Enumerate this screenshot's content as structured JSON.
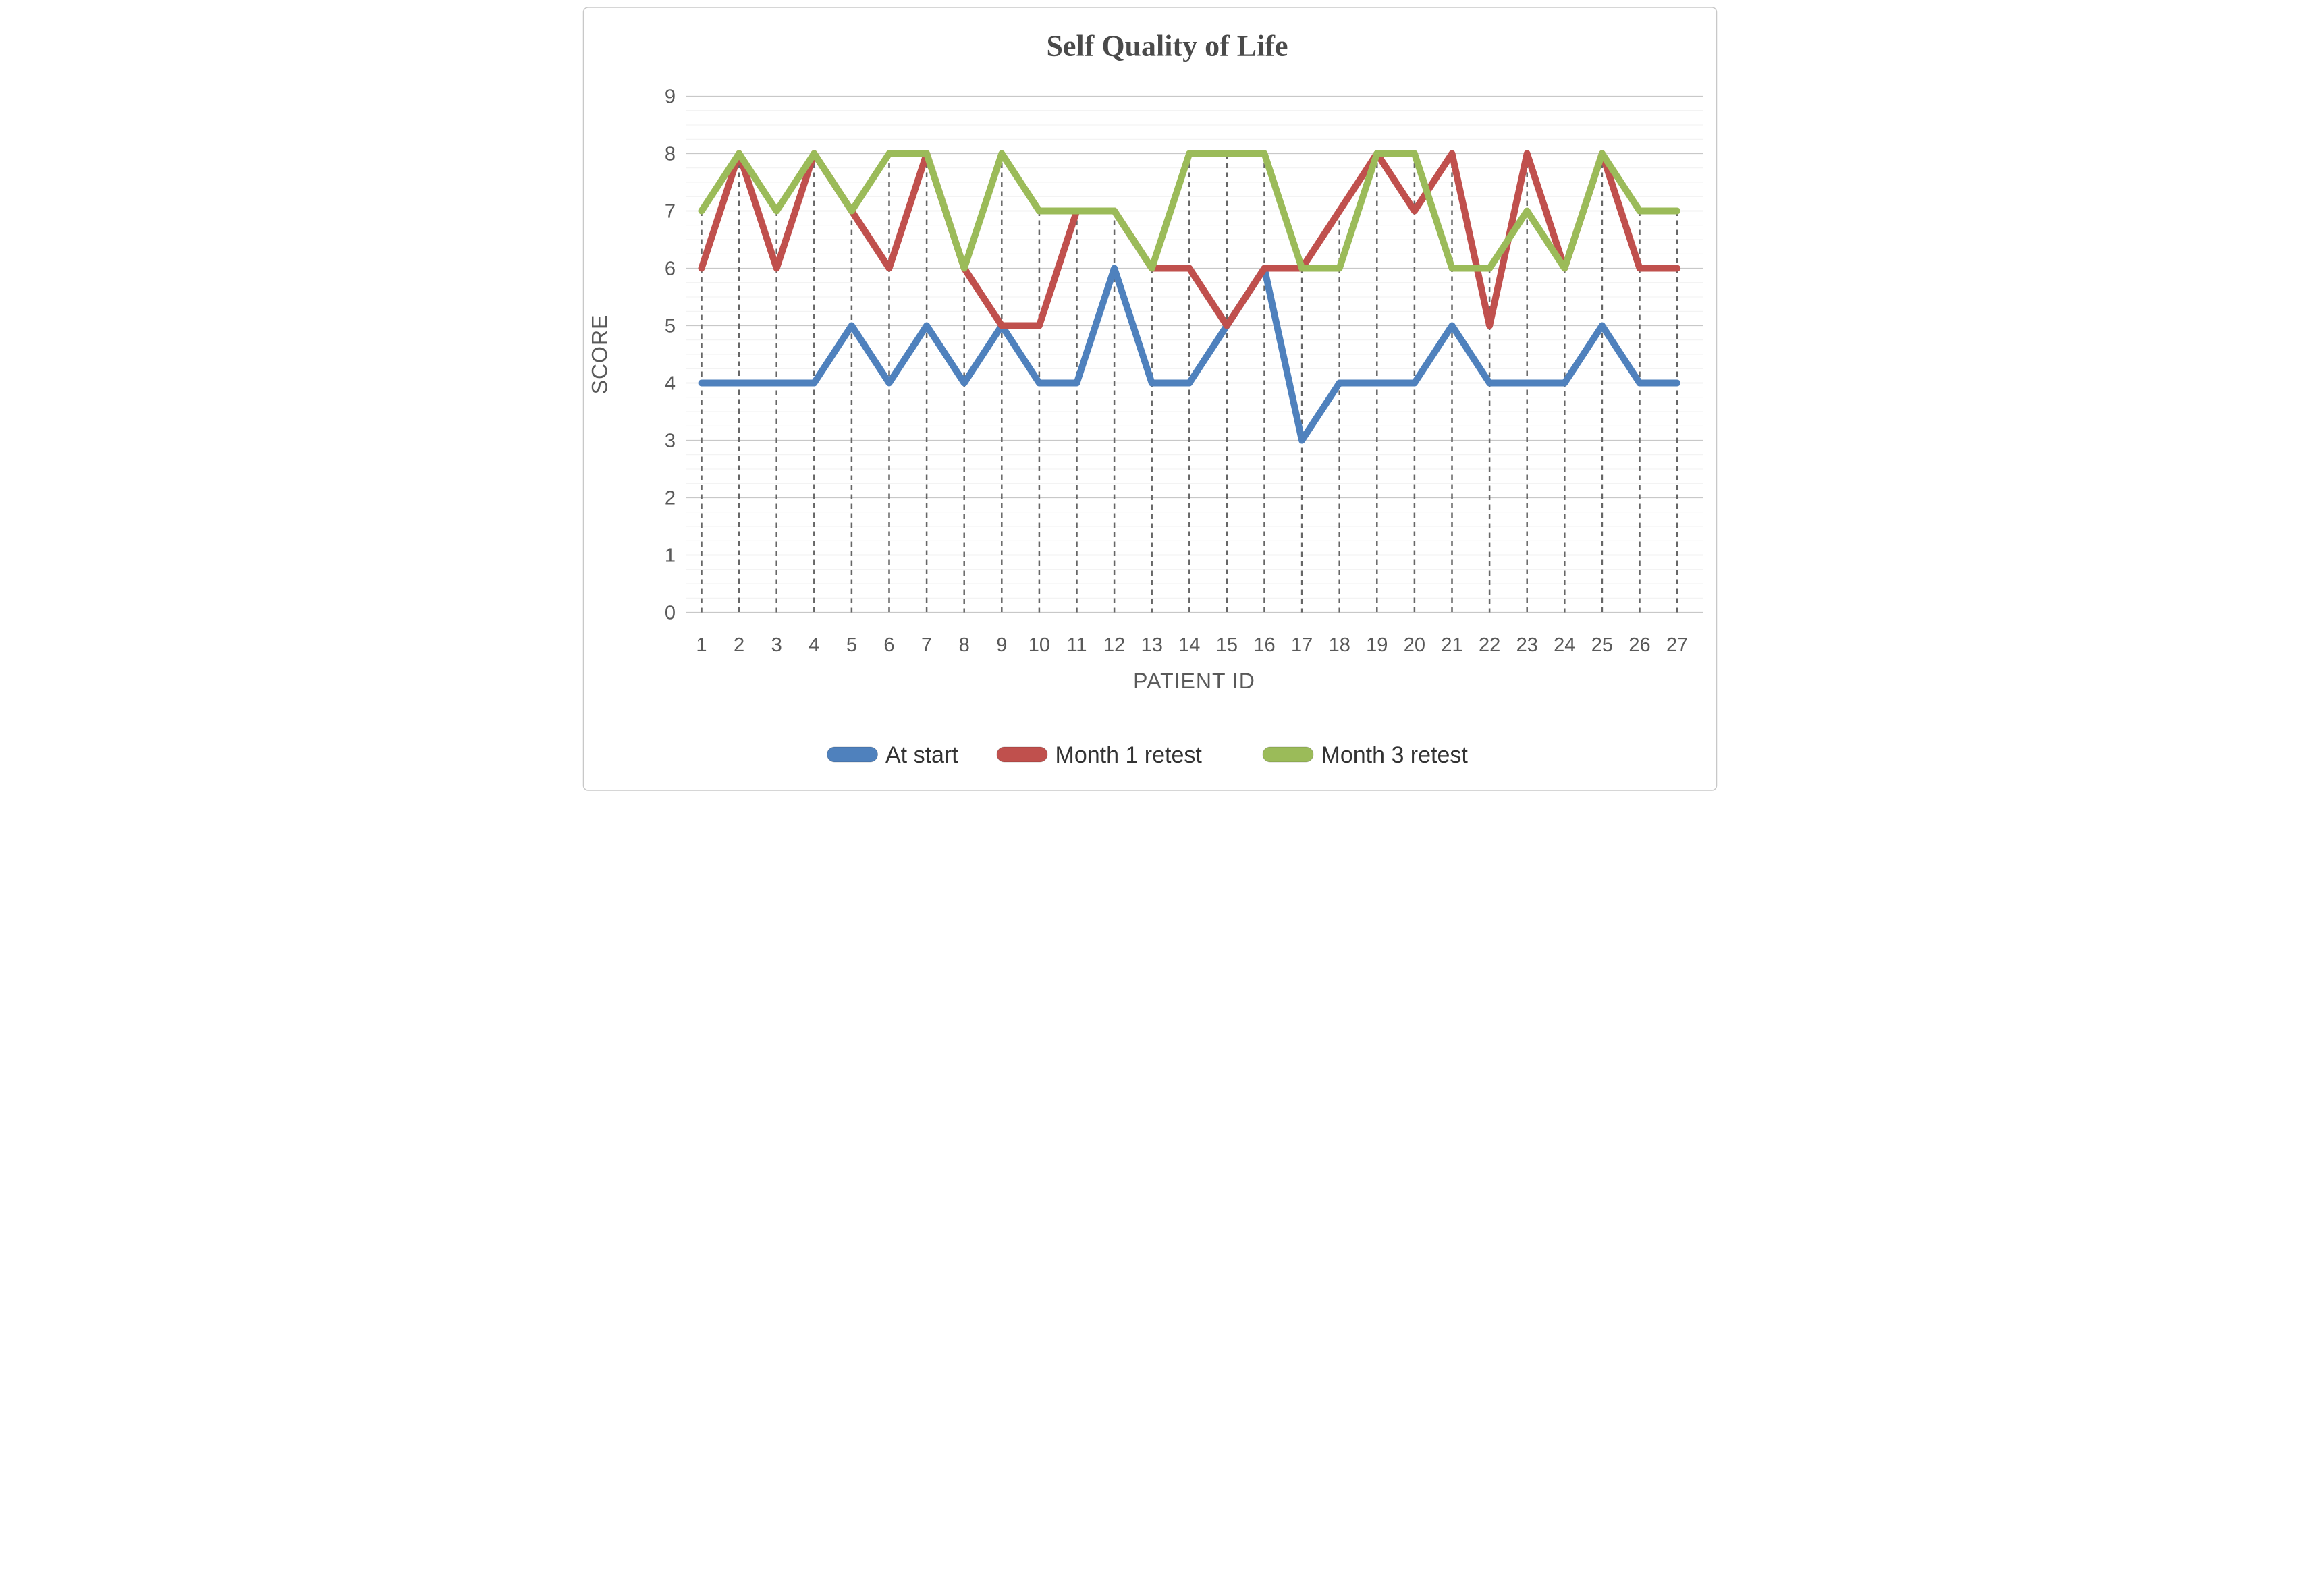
{
  "chart_data": {
    "type": "line",
    "title": "Self Quality of Life",
    "xlabel": "PATIENT ID",
    "ylabel": "SCORE",
    "categories": [
      "1",
      "2",
      "3",
      "4",
      "5",
      "6",
      "7",
      "8",
      "9",
      "10",
      "11",
      "12",
      "13",
      "14",
      "15",
      "16",
      "17",
      "18",
      "19",
      "20",
      "21",
      "22",
      "23",
      "24",
      "25",
      "26",
      "27"
    ],
    "y_ticks": [
      9,
      8,
      7,
      6,
      5,
      4,
      3,
      2,
      1,
      0
    ],
    "ylim": [
      0,
      9
    ],
    "grid": {
      "major": true,
      "minor": true,
      "minor_step": 0.25
    },
    "drop_lines": true,
    "legend_position": "bottom",
    "series": [
      {
        "name": "At start",
        "color": "#4F81BD",
        "values": [
          4,
          4,
          4,
          4,
          5,
          4,
          5,
          4,
          5,
          4,
          4,
          6,
          4,
          4,
          5,
          6,
          3,
          4,
          4,
          4,
          5,
          4,
          4,
          4,
          5,
          4,
          4
        ]
      },
      {
        "name": "Month 1 retest",
        "color": "#C0504D",
        "values": [
          6,
          8,
          6,
          8,
          7,
          6,
          8,
          6,
          5,
          5,
          7,
          7,
          6,
          6,
          5,
          6,
          6,
          7,
          8,
          7,
          8,
          5,
          8,
          6,
          8,
          6,
          6
        ]
      },
      {
        "name": "Month 3 retest",
        "color": "#9BBB59",
        "values": [
          7,
          8,
          7,
          8,
          7,
          8,
          8,
          6,
          8,
          7,
          7,
          7,
          6,
          8,
          8,
          8,
          6,
          6,
          8,
          8,
          6,
          6,
          7,
          6,
          8,
          7,
          7
        ]
      }
    ],
    "colors": {
      "grid_major": "#C8C8C8",
      "grid_minor": "#ECECEC",
      "drop_line": "#666666",
      "text": "#595959",
      "border": "#C8C8C8"
    }
  }
}
